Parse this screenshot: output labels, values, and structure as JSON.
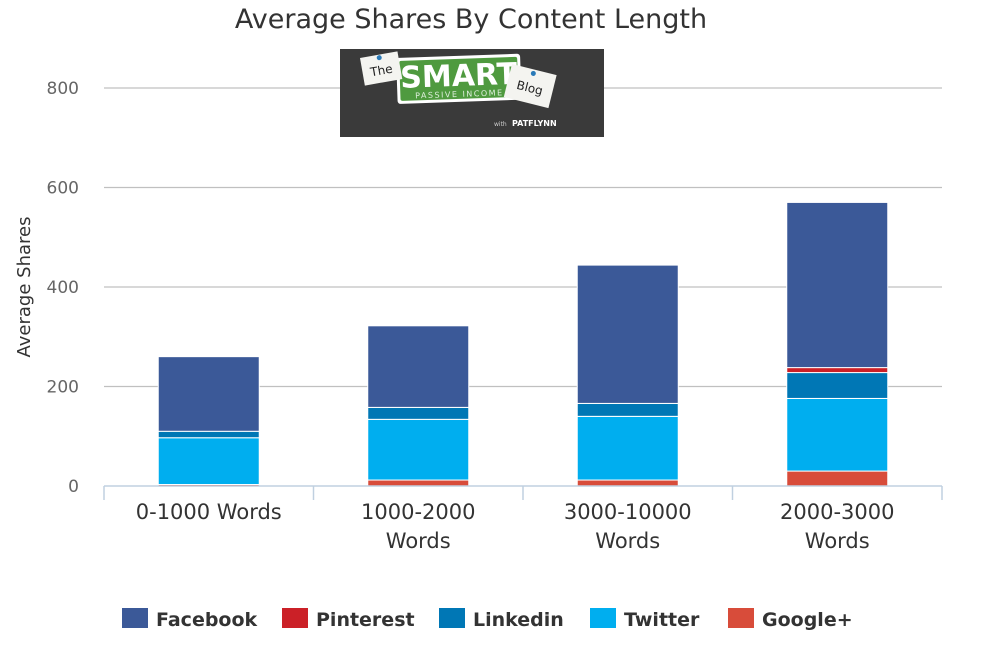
{
  "chart_data": {
    "type": "bar",
    "stacked": true,
    "title": "Average Shares By Content Length",
    "xlabel": "",
    "ylabel": "Average Shares",
    "ylim": [
      0,
      800
    ],
    "yticks": [
      0,
      200,
      400,
      600,
      800
    ],
    "grid": true,
    "legend_position": "bottom",
    "categories": [
      [
        "0-1000 Words"
      ],
      [
        "1000-2000",
        "Words"
      ],
      [
        "3000-10000",
        "Words"
      ],
      [
        "2000-3000",
        "Words"
      ]
    ],
    "series": [
      {
        "name": "Google+",
        "color": "#d84c3a",
        "values": [
          3,
          12,
          12,
          30
        ]
      },
      {
        "name": "Twitter",
        "color": "#00aeef",
        "values": [
          94,
          122,
          128,
          146
        ]
      },
      {
        "name": "Linkedin",
        "color": "#0077b5",
        "values": [
          13,
          24,
          26,
          52
        ]
      },
      {
        "name": "Pinterest",
        "color": "#cb2027",
        "values": [
          0,
          0,
          0,
          10
        ]
      },
      {
        "name": "Facebook",
        "color": "#3b5998",
        "values": [
          150,
          164,
          278,
          332
        ]
      }
    ],
    "legend_order": [
      "Facebook",
      "Pinterest",
      "Linkedin",
      "Twitter",
      "Google+"
    ]
  },
  "logo": {
    "the": "The",
    "smart": "SMART",
    "subtitle": "PASSIVE INCOME",
    "blog": "Blog",
    "byline_prefix": "with",
    "byline_name": "PATFLYNN",
    "background": "#3a3a3a",
    "sign_color": "#4f9a3f"
  }
}
